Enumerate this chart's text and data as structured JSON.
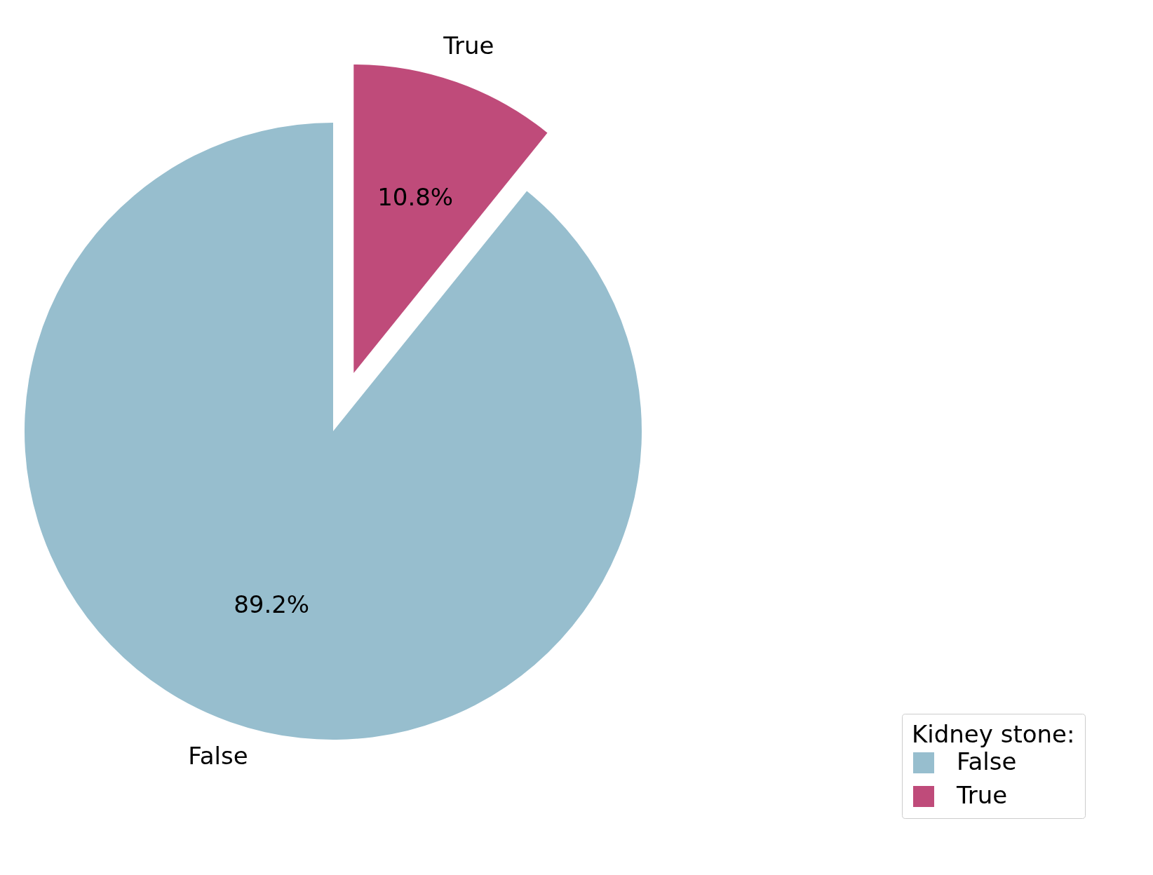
{
  "chart_data": {
    "type": "pie",
    "categories": [
      "False",
      "True"
    ],
    "values": [
      89.2,
      10.8
    ],
    "colors": [
      "#97bece",
      "#bf4b7a"
    ],
    "value_labels": [
      "89.2%",
      "10.8%"
    ],
    "legend_title": "Kidney stone:",
    "legend": "bottom right"
  }
}
